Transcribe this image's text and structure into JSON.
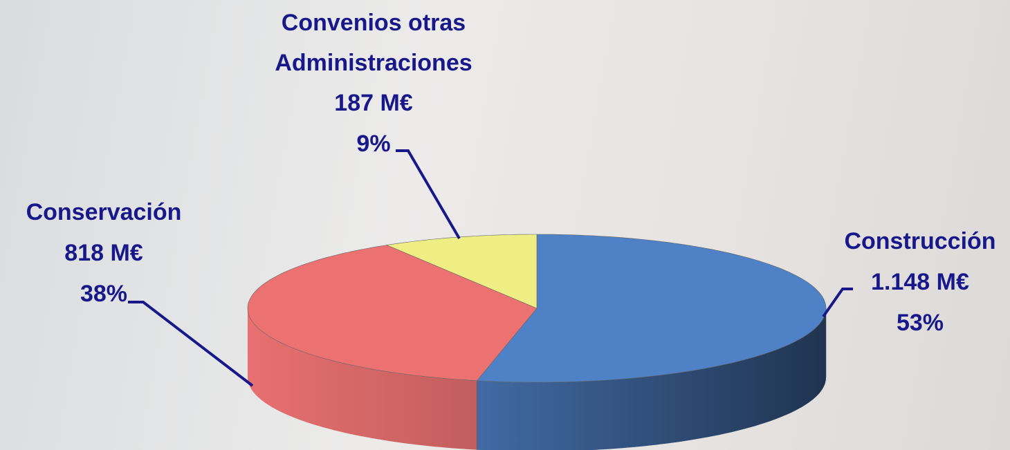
{
  "chart_data": {
    "type": "pie3d",
    "categories": [
      "Construcción",
      "Conservación",
      "Convenios otras Administraciones"
    ],
    "values": [
      1148,
      818,
      187
    ],
    "value_labels": [
      "1.148 M€",
      "818 M€",
      "187 M€"
    ],
    "percents": [
      53,
      38,
      9
    ],
    "percent_labels": [
      "53%",
      "38%",
      "9%"
    ],
    "colors": [
      "#4f81c7",
      "#ec7272",
      "#eeee84"
    ]
  }
}
